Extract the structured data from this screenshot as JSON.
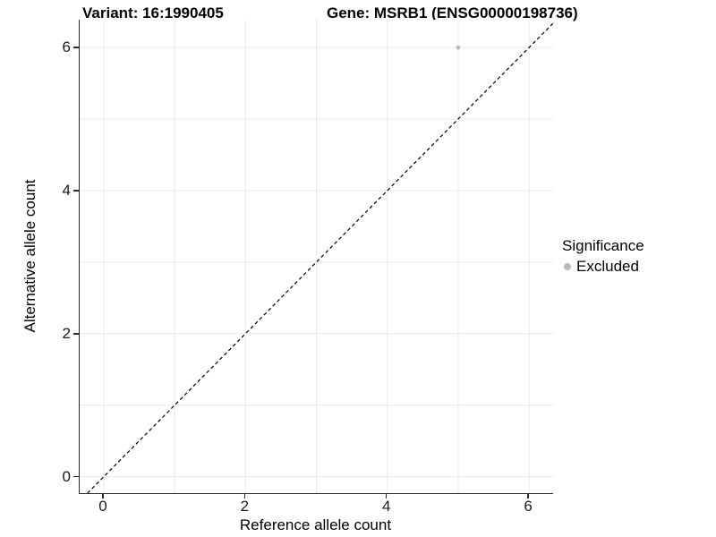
{
  "titles": {
    "variant": "Variant: 16:1990405",
    "gene": "Gene: MSRB1 (ENSG00000198736)"
  },
  "colors": {
    "grid": "#e9e9e9",
    "axis": "#2b2b2b",
    "identity_line": "#000000",
    "excluded_point": "#b9b9b9",
    "background": "#ffffff"
  },
  "chart_data": {
    "type": "scatter",
    "title_left": "Variant: 16:1990405",
    "title_right": "Gene: MSRB1 (ENSG00000198736)",
    "xlabel": "Reference allele count",
    "ylabel": "Alternative allele count",
    "xlim": [
      -0.34,
      6.34
    ],
    "ylim": [
      -0.23,
      6.39
    ],
    "xticks": [
      0,
      2,
      4,
      6
    ],
    "yticks": [
      0,
      2,
      4,
      6
    ],
    "grid_x": [
      0,
      1,
      2,
      3,
      4,
      5,
      6
    ],
    "grid_y": [
      0,
      1,
      2,
      3,
      4,
      5,
      6
    ],
    "grid": true,
    "series": [
      {
        "name": "Excluded",
        "color": "#b9b9b9",
        "points": [
          {
            "x": 5,
            "y": 6
          }
        ]
      }
    ],
    "reference_line": {
      "type": "identity",
      "equation": "y = x",
      "style": "dashed",
      "color": "#000000"
    },
    "legend": {
      "title": "Significance",
      "position": "right",
      "entries": [
        {
          "label": "Excluded",
          "color": "#b9b9b9"
        }
      ]
    }
  }
}
